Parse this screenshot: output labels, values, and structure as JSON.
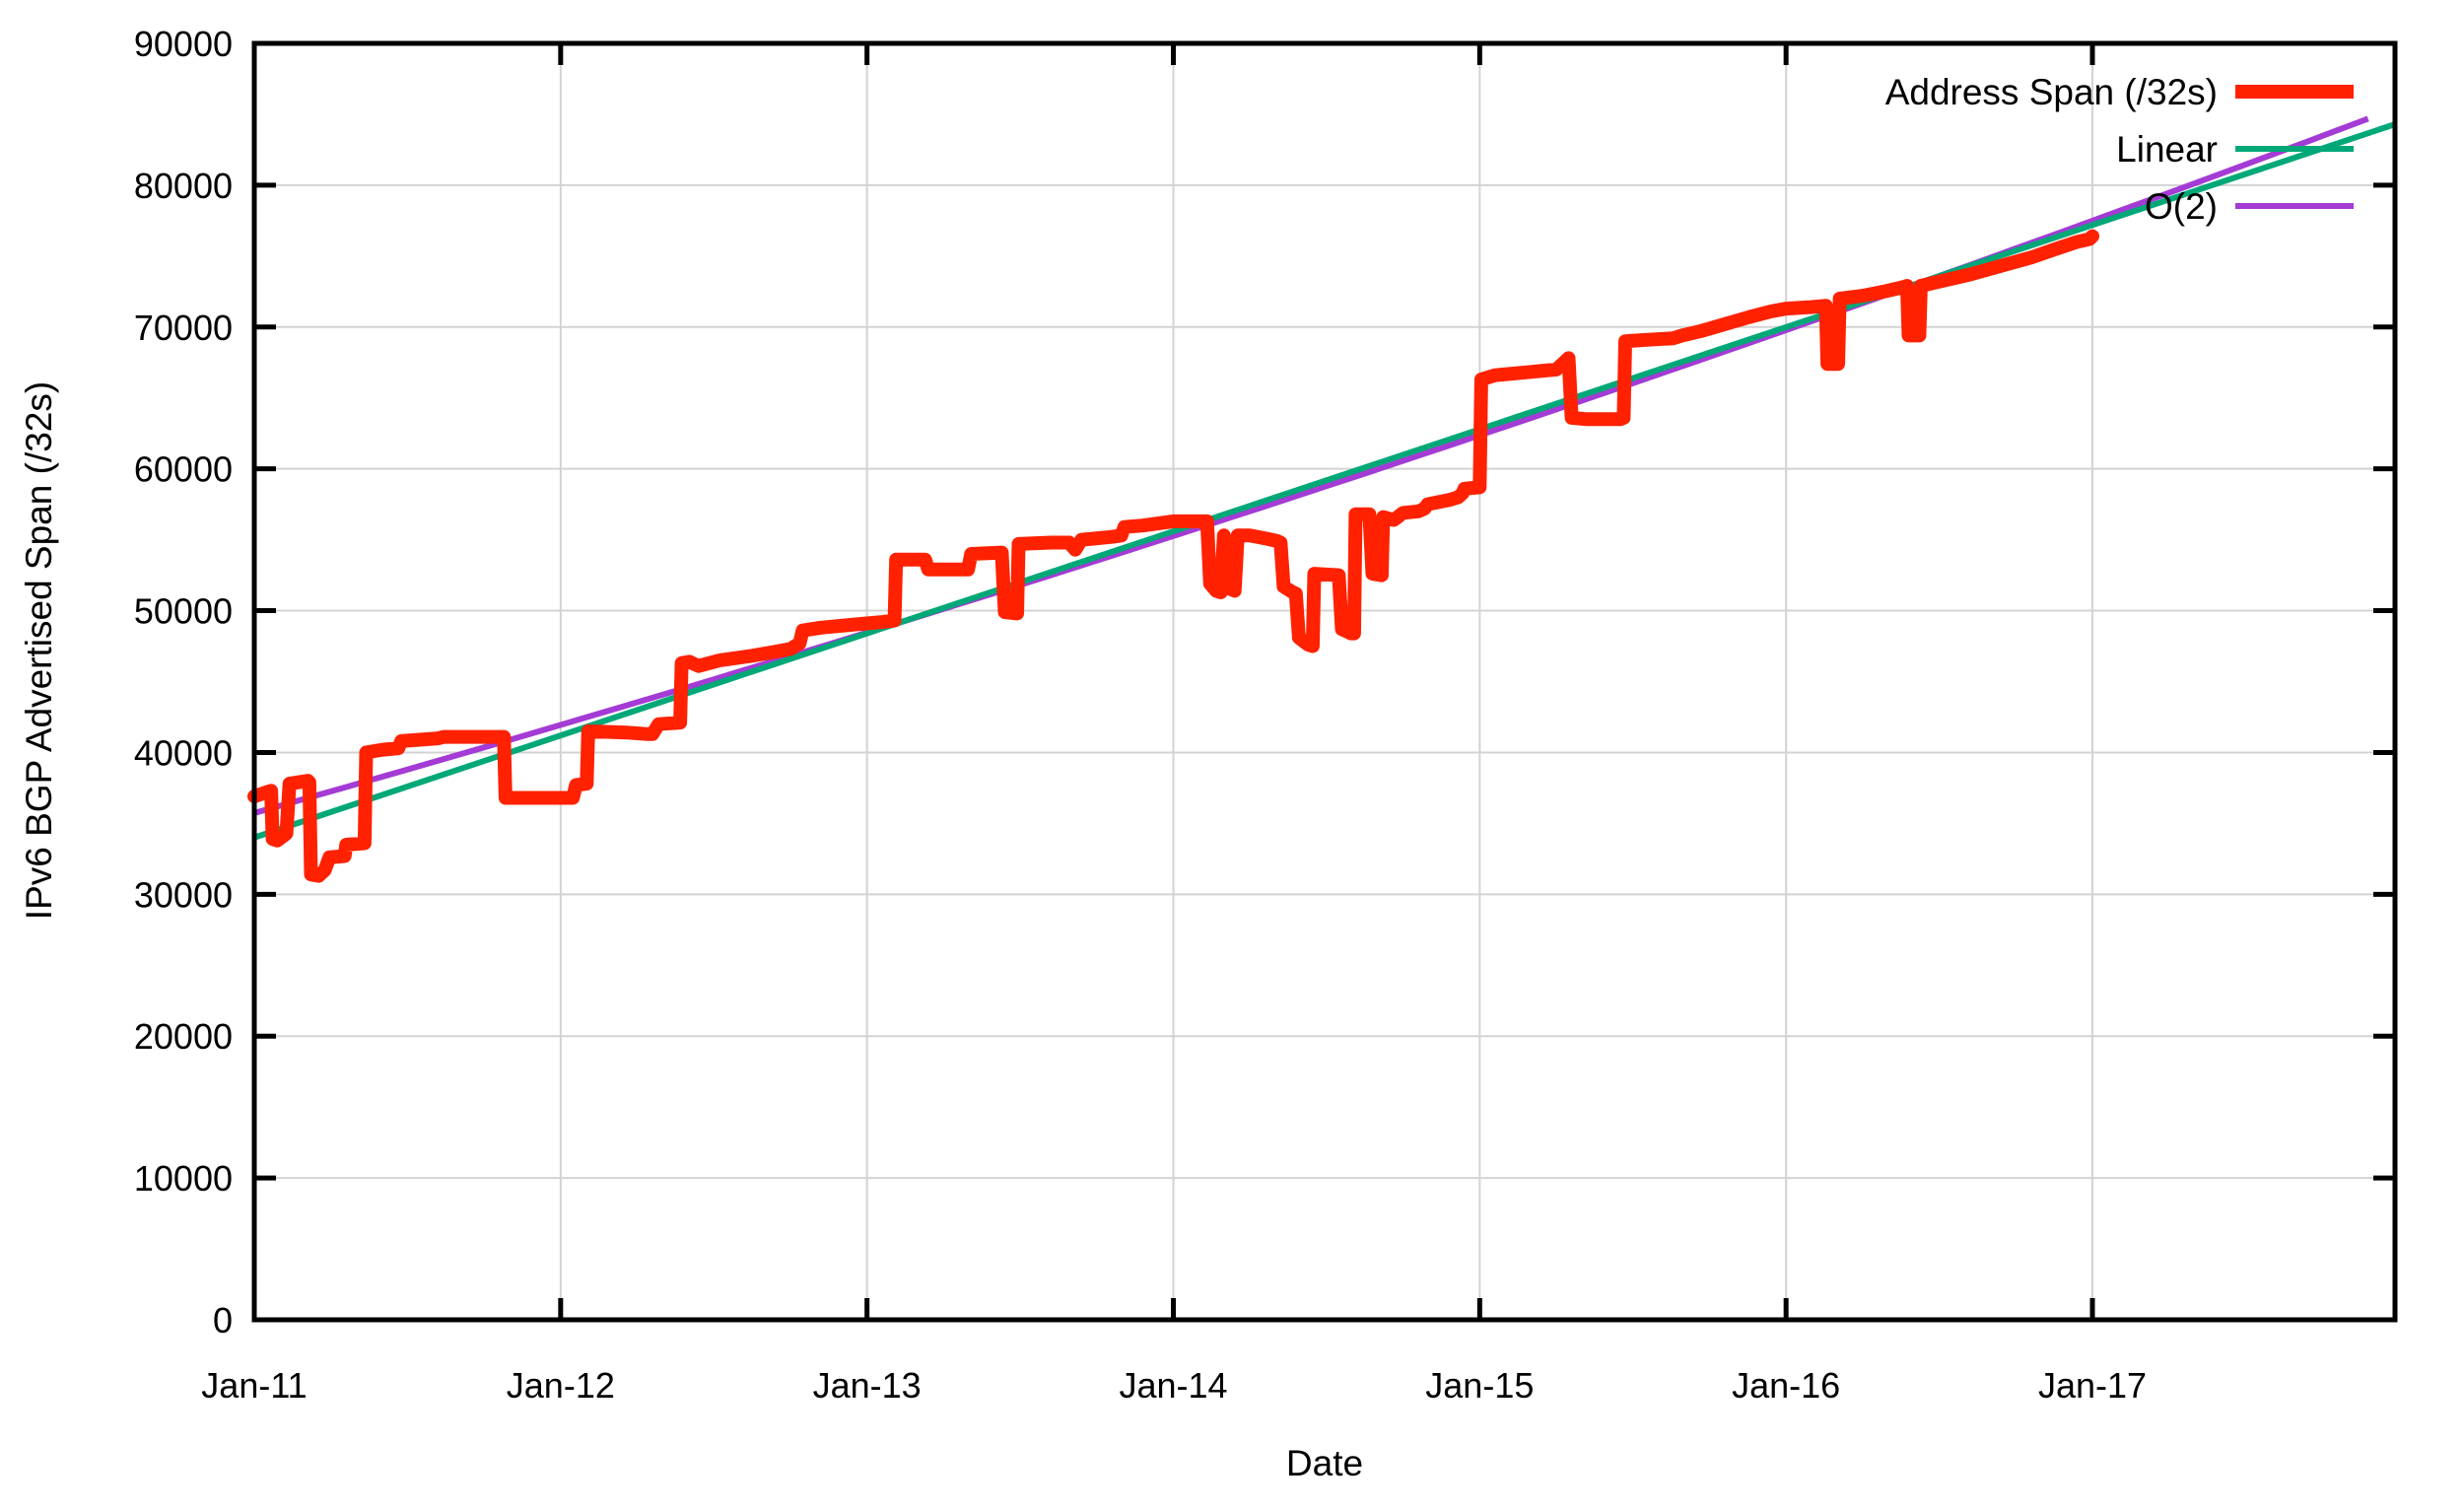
{
  "chart_data": {
    "type": "line",
    "title": "",
    "xlabel": "Date",
    "ylabel": "IPv6 BGP Advertised Span (/32s)",
    "x_ticks": [
      "Jan-11",
      "Jan-12",
      "Jan-13",
      "Jan-14",
      "Jan-15",
      "Jan-16",
      "Jan-17"
    ],
    "x_range_years": [
      0,
      6.988
    ],
    "ylim": [
      0,
      90000
    ],
    "y_tick_step": 10000,
    "y_tick_labels": [
      "0",
      "10000",
      "20000",
      "30000",
      "40000",
      "50000",
      "60000",
      "70000",
      "80000",
      "90000"
    ],
    "grid": true,
    "legend_position": "top-right",
    "colors": {
      "address_span": "#ff2100",
      "linear": "#00a878",
      "o2": "#a43bd5",
      "grid": "#d3d3d3",
      "axis": "#000000"
    },
    "legend": [
      {
        "label": "Address Span (/32s)",
        "series": "address_span",
        "sample_stroke": 14
      },
      {
        "label": "Linear",
        "series": "linear",
        "sample_stroke": 6
      },
      {
        "label": "O(2)",
        "series": "o2",
        "sample_stroke": 6
      }
    ],
    "series": [
      {
        "name": "Address Span (/32s)",
        "key": "address_span",
        "style": "thick-steps",
        "stroke": 14,
        "points": [
          [
            0,
            36900
          ],
          [
            0.04,
            37200
          ],
          [
            0.055,
            37300
          ],
          [
            0.06,
            33900
          ],
          [
            0.075,
            33800
          ],
          [
            0.1,
            34200
          ],
          [
            0.105,
            34300
          ],
          [
            0.115,
            37800
          ],
          [
            0.175,
            38000
          ],
          [
            0.18,
            37900
          ],
          [
            0.185,
            31400
          ],
          [
            0.21,
            31300
          ],
          [
            0.23,
            31700
          ],
          [
            0.245,
            32600
          ],
          [
            0.295,
            32700
          ],
          [
            0.3,
            33500
          ],
          [
            0.36,
            33600
          ],
          [
            0.365,
            40000
          ],
          [
            0.42,
            40200
          ],
          [
            0.47,
            40300
          ],
          [
            0.48,
            40800
          ],
          [
            0.6,
            41000
          ],
          [
            0.62,
            41100
          ],
          [
            0.815,
            41100
          ],
          [
            0.82,
            36800
          ],
          [
            1.04,
            36800
          ],
          [
            1.05,
            37700
          ],
          [
            1.085,
            37800
          ],
          [
            1.09,
            41500
          ],
          [
            1.22,
            41400
          ],
          [
            1.28,
            41300
          ],
          [
            1.3,
            41300
          ],
          [
            1.32,
            42000
          ],
          [
            1.39,
            42100
          ],
          [
            1.395,
            46300
          ],
          [
            1.42,
            46400
          ],
          [
            1.45,
            46100
          ],
          [
            1.52,
            46500
          ],
          [
            1.62,
            46800
          ],
          [
            1.7,
            47100
          ],
          [
            1.75,
            47300
          ],
          [
            1.78,
            47700
          ],
          [
            1.79,
            48600
          ],
          [
            1.85,
            48800
          ],
          [
            1.95,
            49000
          ],
          [
            2.05,
            49200
          ],
          [
            2.09,
            49300
          ],
          [
            2.095,
            53600
          ],
          [
            2.19,
            53600
          ],
          [
            2.2,
            52900
          ],
          [
            2.33,
            52900
          ],
          [
            2.34,
            54000
          ],
          [
            2.44,
            54100
          ],
          [
            2.45,
            49900
          ],
          [
            2.49,
            49800
          ],
          [
            2.495,
            54700
          ],
          [
            2.6,
            54800
          ],
          [
            2.66,
            54800
          ],
          [
            2.68,
            54300
          ],
          [
            2.7,
            55000
          ],
          [
            2.8,
            55200
          ],
          [
            2.83,
            55300
          ],
          [
            2.84,
            55900
          ],
          [
            2.9,
            56000
          ],
          [
            3.0,
            56300
          ],
          [
            3.11,
            56300
          ],
          [
            3.12,
            51900
          ],
          [
            3.14,
            51400
          ],
          [
            3.155,
            51300
          ],
          [
            3.165,
            55300
          ],
          [
            3.18,
            51600
          ],
          [
            3.2,
            51400
          ],
          [
            3.21,
            55300
          ],
          [
            3.25,
            55300
          ],
          [
            3.3,
            55100
          ],
          [
            3.34,
            54900
          ],
          [
            3.35,
            54800
          ],
          [
            3.36,
            51700
          ],
          [
            3.39,
            51300
          ],
          [
            3.4,
            51200
          ],
          [
            3.41,
            48100
          ],
          [
            3.44,
            47600
          ],
          [
            3.455,
            47500
          ],
          [
            3.46,
            52600
          ],
          [
            3.54,
            52500
          ],
          [
            3.55,
            48700
          ],
          [
            3.58,
            48400
          ],
          [
            3.59,
            48400
          ],
          [
            3.595,
            56800
          ],
          [
            3.64,
            56800
          ],
          [
            3.65,
            52600
          ],
          [
            3.68,
            52500
          ],
          [
            3.685,
            56600
          ],
          [
            3.72,
            56400
          ],
          [
            3.75,
            56900
          ],
          [
            3.8,
            57000
          ],
          [
            3.82,
            57200
          ],
          [
            3.83,
            57500
          ],
          [
            3.9,
            57800
          ],
          [
            3.93,
            58000
          ],
          [
            3.945,
            58300
          ],
          [
            3.95,
            58600
          ],
          [
            4.0,
            58700
          ],
          [
            4.005,
            66300
          ],
          [
            4.05,
            66600
          ],
          [
            4.15,
            66800
          ],
          [
            4.25,
            67000
          ],
          [
            4.27,
            67400
          ],
          [
            4.29,
            67800
          ],
          [
            4.3,
            63600
          ],
          [
            4.35,
            63500
          ],
          [
            4.46,
            63500
          ],
          [
            4.47,
            63600
          ],
          [
            4.475,
            69000
          ],
          [
            4.55,
            69100
          ],
          [
            4.63,
            69200
          ],
          [
            4.66,
            69400
          ],
          [
            4.72,
            69700
          ],
          [
            4.8,
            70200
          ],
          [
            4.88,
            70700
          ],
          [
            4.95,
            71100
          ],
          [
            5.0,
            71300
          ],
          [
            5.08,
            71400
          ],
          [
            5.13,
            71500
          ],
          [
            5.135,
            67400
          ],
          [
            5.17,
            67400
          ],
          [
            5.175,
            72000
          ],
          [
            5.25,
            72200
          ],
          [
            5.32,
            72500
          ],
          [
            5.38,
            72800
          ],
          [
            5.395,
            72900
          ],
          [
            5.4,
            69400
          ],
          [
            5.435,
            69400
          ],
          [
            5.44,
            72900
          ],
          [
            5.5,
            73200
          ],
          [
            5.6,
            73700
          ],
          [
            5.7,
            74300
          ],
          [
            5.8,
            74900
          ],
          [
            5.88,
            75500
          ],
          [
            5.95,
            76000
          ],
          [
            5.99,
            76200
          ],
          [
            6.0,
            76400
          ]
        ]
      },
      {
        "name": "Linear",
        "key": "linear",
        "style": "line",
        "stroke": 6,
        "points": [
          [
            0,
            34000
          ],
          [
            6.988,
            84300
          ]
        ]
      },
      {
        "name": "O(2)",
        "key": "o2",
        "style": "quadratic",
        "stroke": 6,
        "quadratic_coefficients": {
          "a": 35732,
          "b": 6060,
          "c": 150
        }
      }
    ]
  }
}
